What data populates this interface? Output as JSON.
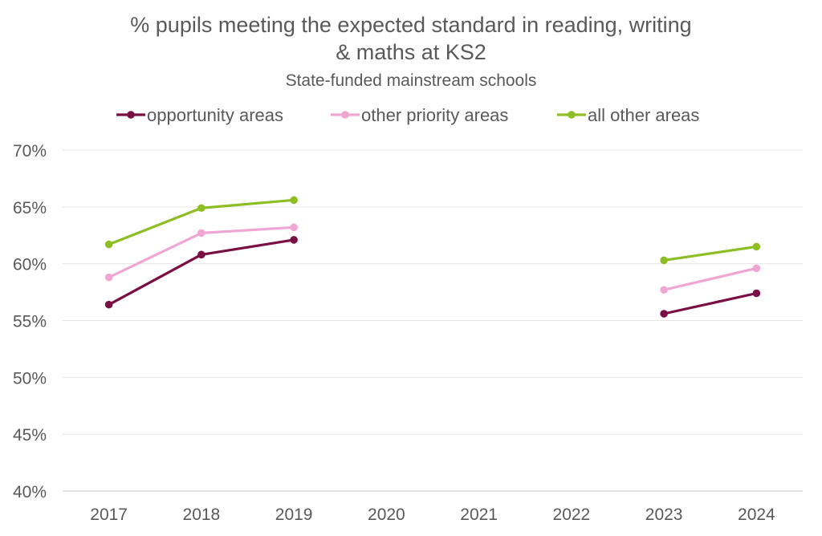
{
  "chart_data": {
    "type": "line",
    "title_line1": "% pupils meeting the expected standard in reading, writing",
    "title_line2": "& maths at KS2",
    "subtitle": "State-funded mainstream schools",
    "xlabel": "",
    "ylabel": "",
    "categories": [
      "2017",
      "2018",
      "2019",
      "2020",
      "2021",
      "2022",
      "2023",
      "2024"
    ],
    "y_ticks": [
      "70%",
      "65%",
      "60%",
      "55%",
      "50%",
      "45%",
      "40%"
    ],
    "y_tick_values": [
      70,
      65,
      60,
      55,
      50,
      45,
      40
    ],
    "ylim": [
      40,
      70
    ],
    "grid": true,
    "legend_position": "top",
    "series": [
      {
        "name": "opportunity areas",
        "color": "#7a0f45",
        "values": [
          56.4,
          60.8,
          62.1,
          null,
          null,
          null,
          55.6,
          57.4
        ]
      },
      {
        "name": "other priority areas",
        "color": "#f0a6d3",
        "values": [
          58.8,
          62.7,
          63.2,
          null,
          null,
          null,
          57.7,
          59.6
        ]
      },
      {
        "name": "all other areas",
        "color": "#8dbf25",
        "values": [
          61.7,
          64.9,
          65.6,
          null,
          null,
          null,
          60.3,
          61.5
        ]
      }
    ]
  }
}
